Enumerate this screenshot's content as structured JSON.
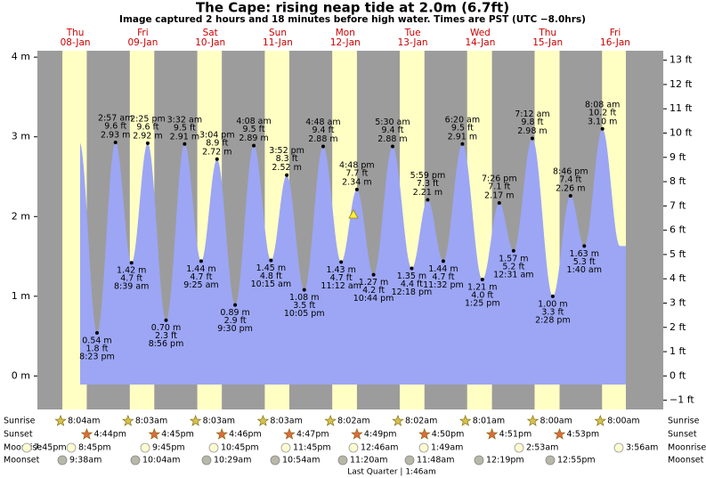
{
  "chart_data": {
    "type": "tide",
    "title": "The Cape: rising  neap tide at 2.0m (6.7ft)",
    "subtitle": "Image captured 2 hours and 18 minutes before high water. Times are PST (UTC −8.0hrs)",
    "ylim": [
      -0.42,
      4.08
    ],
    "yticks": [
      {
        "value": 0,
        "label": "0 m"
      },
      {
        "value": 1,
        "label": "1 m"
      },
      {
        "value": 2,
        "label": "2 m"
      },
      {
        "value": 3,
        "label": "3 m"
      },
      {
        "value": 4,
        "label": "4 m"
      }
    ],
    "y2lim": [
      -1.38,
      13.39
    ],
    "y2ticks": [
      {
        "value": -1,
        "label": "−1 ft"
      },
      {
        "value": 0,
        "label": "0 ft"
      },
      {
        "value": 1,
        "label": "1 ft"
      },
      {
        "value": 2,
        "label": "2 ft"
      },
      {
        "value": 3,
        "label": "3 ft"
      },
      {
        "value": 4,
        "label": "4 ft"
      },
      {
        "value": 5,
        "label": "5 ft"
      },
      {
        "value": 6,
        "label": "6 ft"
      },
      {
        "value": 7,
        "label": "7 ft"
      },
      {
        "value": 8,
        "label": "8 ft"
      },
      {
        "value": 9,
        "label": "9 ft"
      },
      {
        "value": 10,
        "label": "10 ft"
      },
      {
        "value": 11,
        "label": "11 ft"
      },
      {
        "value": 12,
        "label": "12 ft"
      },
      {
        "value": 13,
        "label": "13 ft"
      }
    ],
    "colors": {
      "water": "#9ca6f4",
      "night": "#9c9c9c",
      "day": "#ffffc4",
      "header": "#cc0000"
    },
    "days": [
      {
        "weekday": "Thu",
        "date": "08-Jan",
        "events": [
          {
            "type": "low",
            "time": "8:23 pm",
            "height_m": 0.54,
            "height_m_label": "0.54 m",
            "height_ft": 1.8,
            "height_ft_label": "1.8 ft"
          }
        ]
      },
      {
        "weekday": "Fri",
        "date": "09-Jan",
        "events": [
          {
            "type": "high",
            "time": "2:57 am",
            "height_m": 2.93,
            "height_m_label": "2.93 m",
            "height_ft": 9.6,
            "height_ft_label": "9.6 ft"
          },
          {
            "type": "low",
            "time": "8:39 am",
            "height_m": 1.42,
            "height_m_label": "1.42 m",
            "height_ft": 4.7,
            "height_ft_label": "4.7 ft"
          },
          {
            "type": "high",
            "time": "2:25 pm",
            "height_m": 2.92,
            "height_m_label": "2.92 m",
            "height_ft": 9.6,
            "height_ft_label": "9.6 ft"
          },
          {
            "type": "low",
            "time": "8:56 pm",
            "height_m": 0.7,
            "height_m_label": "0.70 m",
            "height_ft": 2.3,
            "height_ft_label": "2.3 ft"
          }
        ]
      },
      {
        "weekday": "Sat",
        "date": "10-Jan",
        "events": [
          {
            "type": "high",
            "time": "3:32 am",
            "height_m": 2.91,
            "height_m_label": "2.91 m",
            "height_ft": 9.5,
            "height_ft_label": "9.5 ft"
          },
          {
            "type": "low",
            "time": "9:25 am",
            "height_m": 1.44,
            "height_m_label": "1.44 m",
            "height_ft": 4.7,
            "height_ft_label": "4.7 ft"
          },
          {
            "type": "high",
            "time": "3:04 pm",
            "height_m": 2.72,
            "height_m_label": "2.72 m",
            "height_ft": 8.9,
            "height_ft_label": "8.9 ft"
          },
          {
            "type": "low",
            "time": "9:30 pm",
            "height_m": 0.89,
            "height_m_label": "0.89 m",
            "height_ft": 2.9,
            "height_ft_label": "2.9 ft"
          }
        ]
      },
      {
        "weekday": "Sun",
        "date": "11-Jan",
        "events": [
          {
            "type": "high",
            "time": "4:08 am",
            "height_m": 2.89,
            "height_m_label": "2.89 m",
            "height_ft": 9.5,
            "height_ft_label": "9.5 ft"
          },
          {
            "type": "low",
            "time": "10:15 am",
            "height_m": 1.45,
            "height_m_label": "1.45 m",
            "height_ft": 4.8,
            "height_ft_label": "4.8 ft"
          },
          {
            "type": "high",
            "time": "3:52 pm",
            "height_m": 2.52,
            "height_m_label": "2.52 m",
            "height_ft": 8.3,
            "height_ft_label": "8.3 ft"
          },
          {
            "type": "low",
            "time": "10:05 pm",
            "height_m": 1.08,
            "height_m_label": "1.08 m",
            "height_ft": 3.5,
            "height_ft_label": "3.5 ft"
          }
        ]
      },
      {
        "weekday": "Mon",
        "date": "12-Jan",
        "events": [
          {
            "type": "high",
            "time": "4:48 am",
            "height_m": 2.88,
            "height_m_label": "2.88 m",
            "height_ft": 9.4,
            "height_ft_label": "9.4 ft"
          },
          {
            "type": "low",
            "time": "11:12 am",
            "height_m": 1.43,
            "height_m_label": "1.43 m",
            "height_ft": 4.7,
            "height_ft_label": "4.7 ft"
          },
          {
            "type": "high",
            "time": "4:48 pm",
            "height_m": 2.34,
            "height_m_label": "2.34 m",
            "height_ft": 7.7,
            "height_ft_label": "7.7 ft"
          },
          {
            "type": "low",
            "time": "10:44 pm",
            "height_m": 1.27,
            "height_m_label": "1.27 m",
            "height_ft": 4.2,
            "height_ft_label": "4.2 ft"
          }
        ]
      },
      {
        "weekday": "Tue",
        "date": "13-Jan",
        "events": [
          {
            "type": "high",
            "time": "5:30 am",
            "height_m": 2.88,
            "height_m_label": "2.88 m",
            "height_ft": 9.4,
            "height_ft_label": "9.4 ft"
          },
          {
            "type": "low",
            "time": "12:18 pm",
            "height_m": 1.35,
            "height_m_label": "1.35 m",
            "height_ft": 4.4,
            "height_ft_label": "4.4 ft"
          },
          {
            "type": "high",
            "time": "5:59 pm",
            "height_m": 2.21,
            "height_m_label": "2.21 m",
            "height_ft": 7.3,
            "height_ft_label": "7.3 ft"
          },
          {
            "type": "low",
            "time": "11:32 pm",
            "height_m": 1.44,
            "height_m_label": "1.44 m",
            "height_ft": 4.7,
            "height_ft_label": "4.7 ft"
          }
        ]
      },
      {
        "weekday": "Wed",
        "date": "14-Jan",
        "events": [
          {
            "type": "high",
            "time": "6:20 am",
            "height_m": 2.91,
            "height_m_label": "2.91 m",
            "height_ft": 9.5,
            "height_ft_label": "9.5 ft"
          },
          {
            "type": "low",
            "time": "1:25 pm",
            "height_m": 1.21,
            "height_m_label": "1.21 m",
            "height_ft": 4.0,
            "height_ft_label": "4.0 ft"
          },
          {
            "type": "high",
            "time": "7:26 pm",
            "height_m": 2.17,
            "height_m_label": "2.17 m",
            "height_ft": 7.1,
            "height_ft_label": "7.1 ft"
          }
        ]
      },
      {
        "weekday": "Thu",
        "date": "15-Jan",
        "events": [
          {
            "type": "low",
            "time": "12:31 am",
            "height_m": 1.57,
            "height_m_label": "1.57 m",
            "height_ft": 5.2,
            "height_ft_label": "5.2 ft"
          },
          {
            "type": "high",
            "time": "7:12 am",
            "height_m": 2.98,
            "height_m_label": "2.98 m",
            "height_ft": 9.8,
            "height_ft_label": "9.8 ft"
          },
          {
            "type": "low",
            "time": "2:28 pm",
            "height_m": 1.0,
            "height_m_label": "1.00 m",
            "height_ft": 3.3,
            "height_ft_label": "3.3 ft"
          },
          {
            "type": "high",
            "time": "8:46 pm",
            "height_m": 2.26,
            "height_m_label": "2.26 m",
            "height_ft": 7.4,
            "height_ft_label": "7.4 ft"
          }
        ]
      },
      {
        "weekday": "Fri",
        "date": "16-Jan",
        "events": [
          {
            "type": "low",
            "time": "1:40 am",
            "height_m": 1.63,
            "height_m_label": "1.63 m",
            "height_ft": 5.3,
            "height_ft_label": "5.3 ft"
          },
          {
            "type": "high",
            "time": "8:08 am",
            "height_m": 3.1,
            "height_m_label": "3.10 m",
            "height_ft": 10.2,
            "height_ft_label": "10.2 ft"
          }
        ]
      }
    ],
    "almanac": {
      "sunrise": {
        "label": "Sunrise",
        "times": [
          "8:04am",
          "8:03am",
          "8:03am",
          "8:03am",
          "8:02am",
          "8:02am",
          "8:01am",
          "8:00am",
          "8:00am"
        ]
      },
      "sunset": {
        "label": "Sunset",
        "times": [
          "4:44pm",
          "4:45pm",
          "4:46pm",
          "4:47pm",
          "4:49pm",
          "4:50pm",
          "4:51pm",
          "4:53pm"
        ]
      },
      "moonrise": {
        "label": "Moonrise",
        "times": [
          "7:45pm",
          "8:45pm",
          "9:45pm",
          "10:45pm",
          "11:45pm",
          "12:46am",
          "1:49am",
          "2:53am",
          "3:56am"
        ]
      },
      "moonset": {
        "label": "Moonset",
        "times": [
          "9:38am",
          "10:04am",
          "10:29am",
          "10:54am",
          "11:20am",
          "11:48am",
          "12:19pm",
          "12:55pm"
        ]
      }
    },
    "moon_phase": "Last Quarter | 1:46am"
  }
}
